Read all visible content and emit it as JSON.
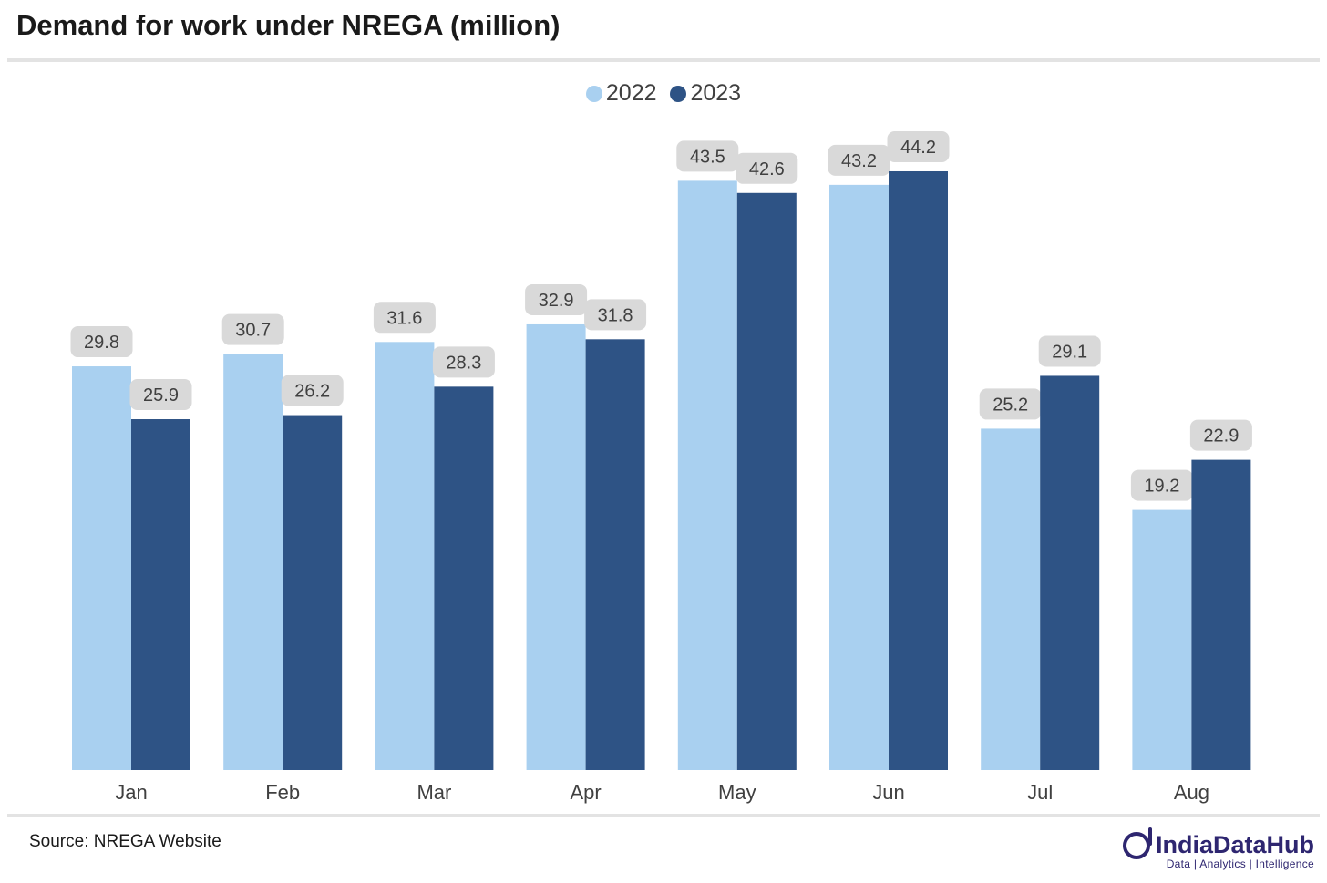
{
  "header": {
    "title": "Demand for work under NREGA (million)"
  },
  "footer": {
    "source": "Source: NREGA Website",
    "brand_name": "IndiaDataHub",
    "brand_tagline": "Data | Analytics | Intelligence"
  },
  "colors": {
    "series_2022": "#a9d0f0",
    "series_2023": "#2e5385",
    "label_bg": "#d9d9d9",
    "label_text": "#404040"
  },
  "chart_data": {
    "type": "bar",
    "title": "Demand for work under NREGA (million)",
    "categories": [
      "Jan",
      "Feb",
      "Mar",
      "Apr",
      "May",
      "Jun",
      "Jul",
      "Aug"
    ],
    "series": [
      {
        "name": "2022",
        "values": [
          29.8,
          30.7,
          31.6,
          32.9,
          43.5,
          43.2,
          25.2,
          19.2
        ]
      },
      {
        "name": "2023",
        "values": [
          25.9,
          26.2,
          28.3,
          31.8,
          42.6,
          44.2,
          29.1,
          22.9
        ]
      }
    ],
    "ylim": [
      0,
      44.2
    ],
    "grid": false,
    "legend_position": "top-center",
    "data_labels": true
  }
}
